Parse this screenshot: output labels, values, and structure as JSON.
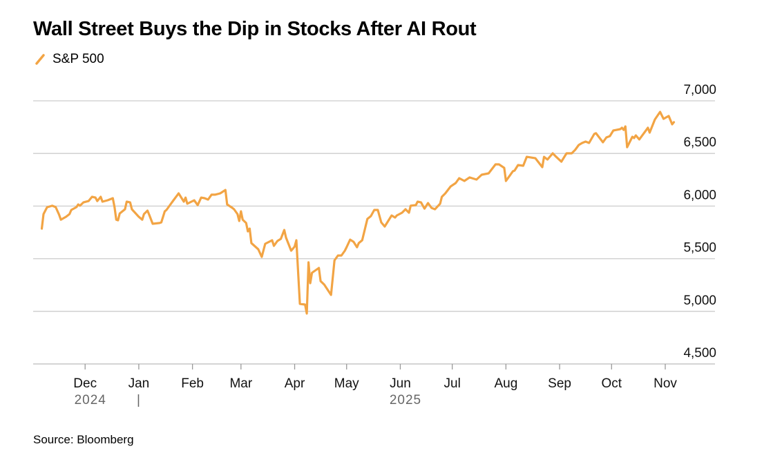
{
  "chart_data": {
    "type": "line",
    "title": "Wall Street Buys the Dip in Stocks After AI Rout",
    "source": "Source: Bloomberg",
    "xlabel": "",
    "ylabel": "",
    "ylim": [
      4500,
      7000
    ],
    "yticks": [
      "7,000",
      "6,500",
      "6,000",
      "5,500",
      "5,000",
      "4,500"
    ],
    "ytick_values": [
      7000,
      6500,
      6000,
      5500,
      5000,
      4500
    ],
    "xticks": [
      {
        "label": "Dec",
        "date": "2024-12-01"
      },
      {
        "label": "Jan",
        "date": "2025-01-01"
      },
      {
        "label": "Feb",
        "date": "2025-02-01"
      },
      {
        "label": "Mar",
        "date": "2025-03-01"
      },
      {
        "label": "Apr",
        "date": "2025-04-01"
      },
      {
        "label": "May",
        "date": "2025-05-01"
      },
      {
        "label": "Jun",
        "date": "2025-06-01"
      },
      {
        "label": "Jul",
        "date": "2025-07-01"
      },
      {
        "label": "Aug",
        "date": "2025-08-01"
      },
      {
        "label": "Sep",
        "date": "2025-09-01"
      },
      {
        "label": "Oct",
        "date": "2025-10-01"
      },
      {
        "label": "Nov",
        "date": "2025-11-01"
      }
    ],
    "year_labels": [
      {
        "label": "2024",
        "date": "2024-12-04"
      },
      {
        "label": "|",
        "date": "2025-01-01"
      },
      {
        "label": "2025",
        "date": "2025-06-04"
      }
    ],
    "xlim": [
      "2024-11-01",
      "2025-11-27"
    ],
    "grid": true,
    "legend_position": "top-left",
    "series": [
      {
        "name": "S&P 500",
        "color": "#f2a444",
        "points": [
          [
            "2024-11-06",
            5786
          ],
          [
            "2024-11-07",
            5924
          ],
          [
            "2024-11-09",
            5989
          ],
          [
            "2024-11-12",
            6003
          ],
          [
            "2024-11-14",
            5990
          ],
          [
            "2024-11-16",
            5917
          ],
          [
            "2024-11-17",
            5871
          ],
          [
            "2024-11-20",
            5898
          ],
          [
            "2024-11-22",
            5924
          ],
          [
            "2024-11-23",
            5963
          ],
          [
            "2024-11-26",
            5990
          ],
          [
            "2024-11-27",
            6016
          ],
          [
            "2024-11-28",
            6003
          ],
          [
            "2024-11-30",
            6035
          ],
          [
            "2024-12-03",
            6048
          ],
          [
            "2024-12-05",
            6088
          ],
          [
            "2024-12-07",
            6081
          ],
          [
            "2024-12-08",
            6048
          ],
          [
            "2024-12-10",
            6088
          ],
          [
            "2024-12-11",
            6042
          ],
          [
            "2024-12-14",
            6055
          ],
          [
            "2024-12-17",
            6075
          ],
          [
            "2024-12-18",
            5990
          ],
          [
            "2024-12-19",
            5871
          ],
          [
            "2024-12-20",
            5865
          ],
          [
            "2024-12-21",
            5930
          ],
          [
            "2024-12-24",
            5970
          ],
          [
            "2024-12-25",
            6042
          ],
          [
            "2024-12-27",
            6035
          ],
          [
            "2024-12-28",
            5970
          ],
          [
            "2025-01-01",
            5898
          ],
          [
            "2025-01-03",
            5871
          ],
          [
            "2025-01-04",
            5924
          ],
          [
            "2025-01-06",
            5957
          ],
          [
            "2025-01-07",
            5917
          ],
          [
            "2025-01-09",
            5832
          ],
          [
            "2025-01-13",
            5839
          ],
          [
            "2025-01-14",
            5845
          ],
          [
            "2025-01-16",
            5950
          ],
          [
            "2025-01-17",
            5963
          ],
          [
            "2025-01-19",
            6009
          ],
          [
            "2025-01-21",
            6055
          ],
          [
            "2025-01-24",
            6121
          ],
          [
            "2025-01-27",
            6042
          ],
          [
            "2025-01-28",
            6081
          ],
          [
            "2025-01-29",
            6022
          ],
          [
            "2025-02-02",
            6055
          ],
          [
            "2025-02-04",
            6009
          ],
          [
            "2025-02-06",
            6081
          ],
          [
            "2025-02-08",
            6075
          ],
          [
            "2025-02-10",
            6062
          ],
          [
            "2025-02-12",
            6108
          ],
          [
            "2025-02-14",
            6108
          ],
          [
            "2025-02-17",
            6121
          ],
          [
            "2025-02-20",
            6153
          ],
          [
            "2025-02-21",
            6016
          ],
          [
            "2025-02-24",
            5983
          ],
          [
            "2025-02-25",
            5970
          ],
          [
            "2025-02-27",
            5924
          ],
          [
            "2025-02-28",
            5858
          ],
          [
            "2025-03-01",
            5950
          ],
          [
            "2025-03-02",
            5871
          ],
          [
            "2025-03-04",
            5839
          ],
          [
            "2025-03-05",
            5760
          ],
          [
            "2025-03-06",
            5786
          ],
          [
            "2025-03-07",
            5648
          ],
          [
            "2025-03-11",
            5589
          ],
          [
            "2025-03-13",
            5517
          ],
          [
            "2025-03-15",
            5642
          ],
          [
            "2025-03-19",
            5675
          ],
          [
            "2025-03-20",
            5622
          ],
          [
            "2025-03-22",
            5668
          ],
          [
            "2025-03-24",
            5688
          ],
          [
            "2025-03-26",
            5773
          ],
          [
            "2025-03-27",
            5701
          ],
          [
            "2025-03-30",
            5576
          ],
          [
            "2025-04-01",
            5615
          ],
          [
            "2025-04-02",
            5675
          ],
          [
            "2025-04-04",
            5071
          ],
          [
            "2025-04-07",
            5064
          ],
          [
            "2025-04-08",
            4979
          ],
          [
            "2025-04-09",
            5465
          ],
          [
            "2025-04-10",
            5268
          ],
          [
            "2025-04-11",
            5366
          ],
          [
            "2025-04-15",
            5412
          ],
          [
            "2025-04-16",
            5287
          ],
          [
            "2025-04-18",
            5255
          ],
          [
            "2025-04-22",
            5156
          ],
          [
            "2025-04-24",
            5484
          ],
          [
            "2025-04-26",
            5530
          ],
          [
            "2025-04-28",
            5530
          ],
          [
            "2025-04-30",
            5576
          ],
          [
            "2025-05-01",
            5609
          ],
          [
            "2025-05-03",
            5681
          ],
          [
            "2025-05-05",
            5661
          ],
          [
            "2025-05-07",
            5609
          ],
          [
            "2025-05-08",
            5648
          ],
          [
            "2025-05-10",
            5675
          ],
          [
            "2025-05-13",
            5878
          ],
          [
            "2025-05-15",
            5904
          ],
          [
            "2025-05-17",
            5963
          ],
          [
            "2025-05-19",
            5963
          ],
          [
            "2025-05-21",
            5845
          ],
          [
            "2025-05-23",
            5806
          ],
          [
            "2025-05-27",
            5911
          ],
          [
            "2025-05-29",
            5891
          ],
          [
            "2025-05-30",
            5911
          ],
          [
            "2025-06-02",
            5937
          ],
          [
            "2025-06-04",
            5970
          ],
          [
            "2025-06-06",
            5937
          ],
          [
            "2025-06-07",
            6003
          ],
          [
            "2025-06-10",
            6009
          ],
          [
            "2025-06-11",
            6042
          ],
          [
            "2025-06-13",
            6035
          ],
          [
            "2025-06-15",
            5976
          ],
          [
            "2025-06-17",
            6029
          ],
          [
            "2025-06-19",
            5983
          ],
          [
            "2025-06-21",
            5970
          ],
          [
            "2025-06-24",
            6022
          ],
          [
            "2025-06-25",
            6088
          ],
          [
            "2025-06-27",
            6121
          ],
          [
            "2025-06-30",
            6186
          ],
          [
            "2025-07-03",
            6219
          ],
          [
            "2025-07-05",
            6265
          ],
          [
            "2025-07-08",
            6239
          ],
          [
            "2025-07-11",
            6272
          ],
          [
            "2025-07-15",
            6252
          ],
          [
            "2025-07-18",
            6298
          ],
          [
            "2025-07-22",
            6311
          ],
          [
            "2025-07-26",
            6396
          ],
          [
            "2025-07-28",
            6396
          ],
          [
            "2025-07-31",
            6363
          ],
          [
            "2025-08-01",
            6239
          ],
          [
            "2025-08-05",
            6331
          ],
          [
            "2025-08-06",
            6337
          ],
          [
            "2025-08-08",
            6390
          ],
          [
            "2025-08-11",
            6383
          ],
          [
            "2025-08-13",
            6468
          ],
          [
            "2025-08-18",
            6455
          ],
          [
            "2025-08-22",
            6370
          ],
          [
            "2025-08-23",
            6468
          ],
          [
            "2025-08-25",
            6442
          ],
          [
            "2025-08-28",
            6501
          ],
          [
            "2025-08-30",
            6468
          ],
          [
            "2025-09-02",
            6422
          ],
          [
            "2025-09-05",
            6501
          ],
          [
            "2025-09-08",
            6501
          ],
          [
            "2025-09-10",
            6534
          ],
          [
            "2025-09-12",
            6580
          ],
          [
            "2025-09-14",
            6600
          ],
          [
            "2025-09-16",
            6613
          ],
          [
            "2025-09-18",
            6600
          ],
          [
            "2025-09-21",
            6685
          ],
          [
            "2025-09-22",
            6692
          ],
          [
            "2025-09-26",
            6606
          ],
          [
            "2025-09-28",
            6652
          ],
          [
            "2025-09-30",
            6665
          ],
          [
            "2025-10-02",
            6718
          ],
          [
            "2025-10-06",
            6731
          ],
          [
            "2025-10-07",
            6744
          ],
          [
            "2025-10-08",
            6724
          ],
          [
            "2025-10-09",
            6757
          ],
          [
            "2025-10-10",
            6560
          ],
          [
            "2025-10-13",
            6659
          ],
          [
            "2025-10-14",
            6646
          ],
          [
            "2025-10-15",
            6672
          ],
          [
            "2025-10-17",
            6633
          ],
          [
            "2025-10-22",
            6744
          ],
          [
            "2025-10-23",
            6698
          ],
          [
            "2025-10-26",
            6823
          ],
          [
            "2025-10-29",
            6895
          ],
          [
            "2025-10-31",
            6829
          ],
          [
            "2025-11-03",
            6856
          ],
          [
            "2025-11-05",
            6777
          ],
          [
            "2025-11-06",
            6797
          ]
        ]
      }
    ]
  }
}
